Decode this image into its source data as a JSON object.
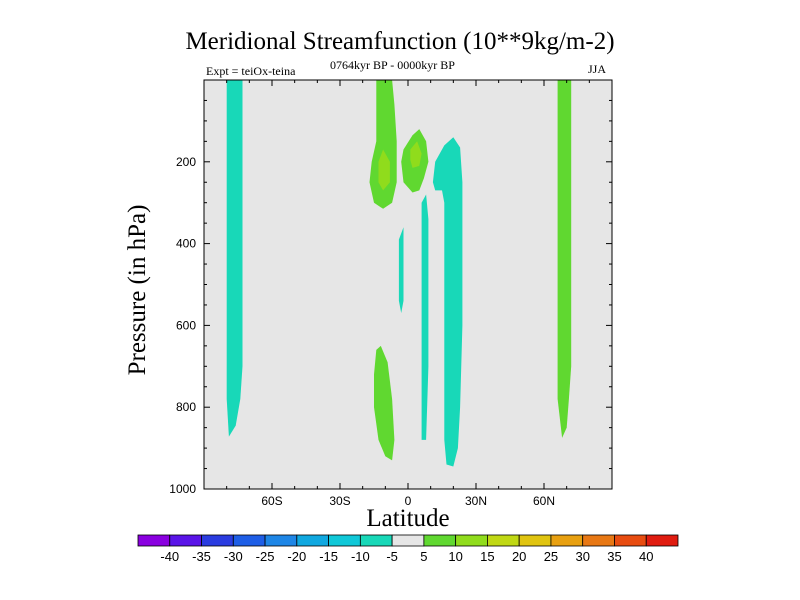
{
  "chart_data": {
    "type": "heatmap",
    "title": "Meridional Streamfunction (10**9kg/m-2)",
    "subtitle_left": "Expt = teiOx-teina",
    "subtitle_center": "0764kyr BP - 0000kyr BP",
    "subtitle_right": "JJA",
    "xlabel": "Latitude",
    "ylabel": "Pressure (in hPa)",
    "xlim": [
      -90,
      90
    ],
    "ylim": [
      0,
      1000
    ],
    "y_inverted": true,
    "x_ticks": [
      {
        "value": -60,
        "label": "60S"
      },
      {
        "value": -30,
        "label": "30S"
      },
      {
        "value": 0,
        "label": "0"
      },
      {
        "value": 30,
        "label": "30N"
      },
      {
        "value": 60,
        "label": "60N"
      }
    ],
    "y_ticks": [
      {
        "value": 200,
        "label": "200"
      },
      {
        "value": 400,
        "label": "400"
      },
      {
        "value": 600,
        "label": "600"
      },
      {
        "value": 800,
        "label": "800"
      },
      {
        "value": 1000,
        "label": "1000"
      }
    ],
    "colorbar": {
      "labels": [
        "-40",
        "-35",
        "-30",
        "-25",
        "-20",
        "-15",
        "-10",
        "-5",
        "5",
        "10",
        "15",
        "20",
        "25",
        "30",
        "35",
        "40"
      ],
      "colors": [
        "#8a00e0",
        "#5a14e8",
        "#2a3ce0",
        "#1e5ee6",
        "#1e86e6",
        "#10a8e0",
        "#10c8d8",
        "#18d8b8",
        "#e6e6e6",
        "#60d830",
        "#90dc1c",
        "#c0d814",
        "#e0c410",
        "#e8a010",
        "#e87814",
        "#e84c10",
        "#e01c10"
      ]
    },
    "background_color": "#e6e6e6",
    "contours": [
      {
        "name": "sh-polar-negative",
        "level": -5,
        "points": [
          [
            -80,
            0
          ],
          [
            -73,
            0
          ],
          [
            -73,
            700
          ],
          [
            -74,
            780
          ],
          [
            -76,
            845
          ],
          [
            -79,
            872
          ],
          [
            -80,
            780
          ],
          [
            -80,
            0
          ]
        ]
      },
      {
        "name": "nh-polar-positive",
        "level": 5,
        "points": [
          [
            66,
            0
          ],
          [
            72,
            0
          ],
          [
            72,
            700
          ],
          [
            71,
            780
          ],
          [
            70,
            850
          ],
          [
            68,
            875
          ],
          [
            66,
            780
          ],
          [
            66,
            0
          ]
        ]
      },
      {
        "name": "tropical-upper-left-positive",
        "level": 5,
        "points": [
          [
            -14,
            0
          ],
          [
            -7,
            0
          ],
          [
            -6,
            60
          ],
          [
            -5,
            150
          ],
          [
            -5,
            250
          ],
          [
            -7,
            300
          ],
          [
            -11,
            315
          ],
          [
            -15,
            300
          ],
          [
            -17,
            250
          ],
          [
            -16,
            200
          ],
          [
            -14,
            150
          ],
          [
            -14,
            0
          ]
        ]
      },
      {
        "name": "tropical-upper-left-core",
        "level": 10,
        "points": [
          [
            -13,
            200
          ],
          [
            -11,
            170
          ],
          [
            -8,
            200
          ],
          [
            -8,
            250
          ],
          [
            -11,
            270
          ],
          [
            -13,
            250
          ],
          [
            -13,
            200
          ]
        ]
      },
      {
        "name": "tropical-upper-right-positive",
        "level": 5,
        "points": [
          [
            -2,
            170
          ],
          [
            2,
            135
          ],
          [
            5,
            120
          ],
          [
            8,
            150
          ],
          [
            9,
            200
          ],
          [
            7,
            240
          ],
          [
            5,
            270
          ],
          [
            2,
            275
          ],
          [
            -2,
            250
          ],
          [
            -3,
            200
          ],
          [
            -2,
            170
          ]
        ]
      },
      {
        "name": "tropical-upper-right-core",
        "level": 10,
        "points": [
          [
            1,
            170
          ],
          [
            4,
            150
          ],
          [
            6,
            180
          ],
          [
            5,
            210
          ],
          [
            2,
            215
          ],
          [
            1,
            195
          ],
          [
            1,
            170
          ]
        ]
      },
      {
        "name": "hadley-right-negative",
        "level": -5,
        "points": [
          [
            12,
            200
          ],
          [
            16,
            160
          ],
          [
            20,
            140
          ],
          [
            23,
            165
          ],
          [
            24,
            250
          ],
          [
            24,
            600
          ],
          [
            23,
            800
          ],
          [
            22,
            900
          ],
          [
            20,
            945
          ],
          [
            17,
            940
          ],
          [
            16,
            880
          ],
          [
            16,
            700
          ],
          [
            16,
            300
          ],
          [
            15,
            270
          ],
          [
            12,
            270
          ],
          [
            11,
            250
          ],
          [
            12,
            200
          ]
        ]
      },
      {
        "name": "tropical-narrow-negative",
        "level": -5,
        "points": [
          [
            6,
            300
          ],
          [
            8,
            280
          ],
          [
            9,
            340
          ],
          [
            9,
            500
          ],
          [
            9,
            700
          ],
          [
            8,
            880
          ],
          [
            6,
            880
          ],
          [
            6,
            700
          ],
          [
            6,
            500
          ],
          [
            6,
            300
          ]
        ]
      },
      {
        "name": "tropical-small-negative",
        "level": -5,
        "points": [
          [
            -4,
            390
          ],
          [
            -2,
            360
          ],
          [
            -2,
            450
          ],
          [
            -2,
            540
          ],
          [
            -3,
            570
          ],
          [
            -4,
            540
          ],
          [
            -4,
            390
          ]
        ]
      },
      {
        "name": "tropical-lower-positive",
        "level": 5,
        "points": [
          [
            -14,
            660
          ],
          [
            -12,
            650
          ],
          [
            -9,
            690
          ],
          [
            -7,
            780
          ],
          [
            -6,
            880
          ],
          [
            -7,
            930
          ],
          [
            -10,
            920
          ],
          [
            -13,
            880
          ],
          [
            -15,
            800
          ],
          [
            -15,
            720
          ],
          [
            -14,
            660
          ]
        ]
      }
    ]
  }
}
